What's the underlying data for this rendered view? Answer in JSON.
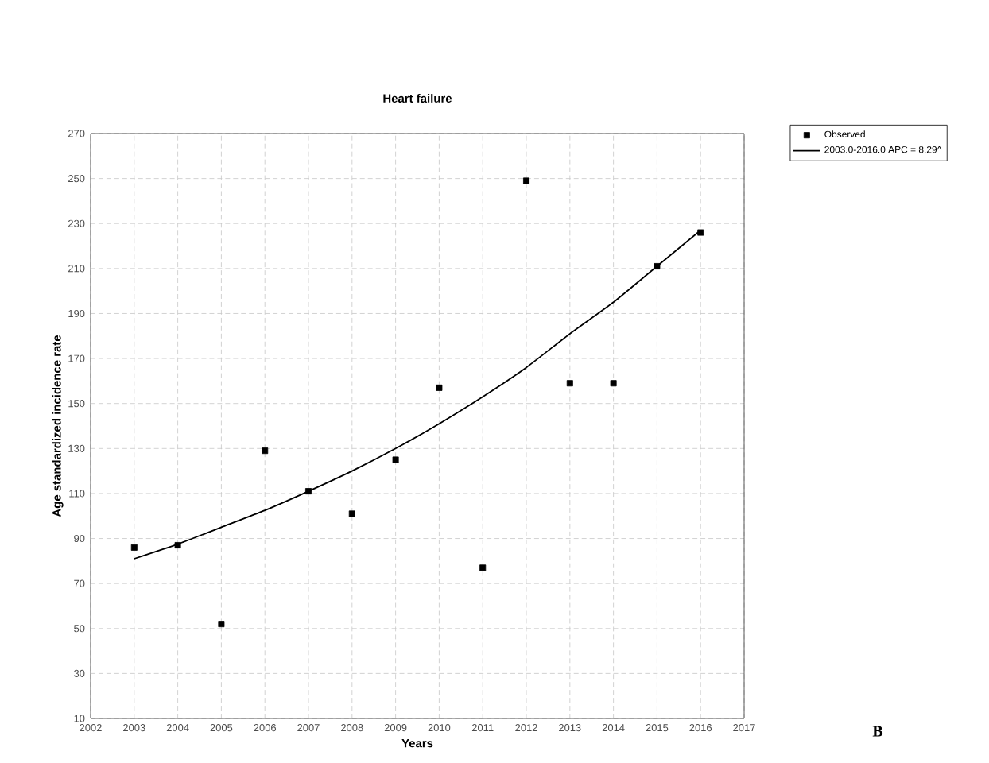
{
  "chart_data": {
    "type": "scatter",
    "title": "Heart failure",
    "xlabel": "Years",
    "ylabel": "Age standardized incidence rate",
    "annotations": [
      "B"
    ],
    "series": [
      {
        "name": "Observed",
        "color": "#000000",
        "marker": "square",
        "x": [
          2003,
          2004,
          2005,
          2006,
          2007,
          2008,
          2009,
          2010,
          2011,
          2012,
          2013,
          2014,
          2015,
          2016
        ],
        "values": [
          86,
          87,
          52,
          129,
          111,
          101,
          125,
          157,
          77,
          249,
          159,
          159,
          211,
          226
        ]
      },
      {
        "name": "2003.0-2016.0 APC  = 8.29^",
        "type": "line",
        "color": "#000000",
        "line_style": "solid",
        "x": [
          2003,
          2004,
          2005,
          2006,
          2007,
          2008,
          2009,
          2010,
          2011,
          2012,
          2013,
          2014,
          2015,
          2016
        ],
        "values": [
          81,
          87.5,
          95,
          102.5,
          111,
          120,
          130,
          141,
          153,
          166,
          181,
          195,
          211,
          227
        ]
      }
    ],
    "xlim": [
      2002,
      2017
    ],
    "xticks": [
      2002,
      2003,
      2004,
      2005,
      2006,
      2007,
      2008,
      2009,
      2010,
      2011,
      2012,
      2013,
      2014,
      2015,
      2016,
      2017
    ],
    "ylim": [
      10,
      270
    ],
    "yticks": [
      10,
      30,
      50,
      70,
      90,
      110,
      130,
      150,
      170,
      190,
      210,
      230,
      250,
      270
    ],
    "grid": true,
    "legend": "top right"
  }
}
